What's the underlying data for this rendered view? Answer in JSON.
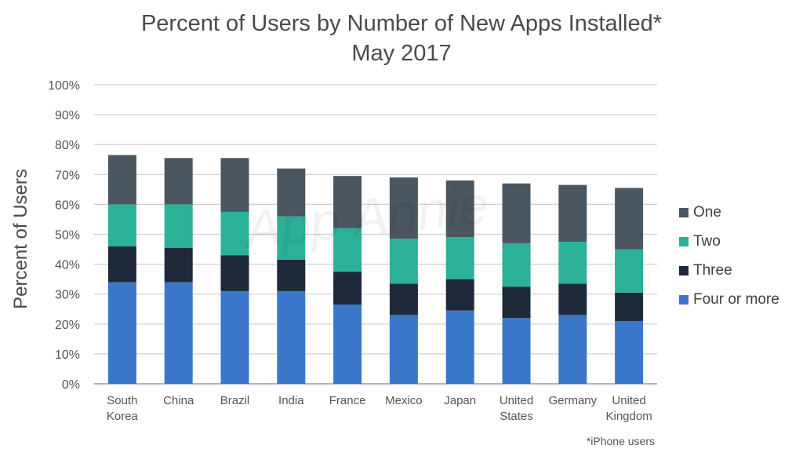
{
  "chart_data": {
    "type": "bar",
    "stacked": true,
    "title": "Percent of Users by Number of New Apps Installed*",
    "subtitle": "May 2017",
    "ylabel": "Percent of Users",
    "xlabel": "",
    "ylim": [
      0,
      100
    ],
    "yticks": [
      "0%",
      "10%",
      "20%",
      "30%",
      "40%",
      "50%",
      "60%",
      "70%",
      "80%",
      "90%",
      "100%"
    ],
    "categories": [
      "South Korea",
      "China",
      "Brazil",
      "India",
      "France",
      "Mexico",
      "Japan",
      "United States",
      "Germany",
      "United Kingdom"
    ],
    "category_lines": [
      [
        "South",
        "Korea"
      ],
      [
        "China"
      ],
      [
        "Brazil"
      ],
      [
        "India"
      ],
      [
        "France"
      ],
      [
        "Mexico"
      ],
      [
        "Japan"
      ],
      [
        "United",
        "States"
      ],
      [
        "Germany"
      ],
      [
        "United",
        "Kingdom"
      ]
    ],
    "series": [
      {
        "name": "Four or more",
        "color": "#3a77c8",
        "values": [
          34,
          34,
          31,
          31,
          26.5,
          23,
          24.5,
          22,
          23,
          21
        ]
      },
      {
        "name": "Three",
        "color": "#1e2a3a",
        "values": [
          12,
          11.5,
          12,
          10.5,
          11,
          10.5,
          10.5,
          10.5,
          10.5,
          9.5
        ]
      },
      {
        "name": "Two",
        "color": "#2bb198",
        "values": [
          14,
          14.5,
          14.5,
          14.5,
          14.5,
          15,
          14,
          14.5,
          14,
          14.5
        ]
      },
      {
        "name": "One",
        "color": "#4a5760",
        "values": [
          16.5,
          15.5,
          18,
          16,
          17.5,
          20.5,
          19,
          20,
          19,
          20.5
        ]
      }
    ],
    "legend": [
      "One",
      "Two",
      "Three",
      "Four or more"
    ],
    "legend_position": "right",
    "grid": true,
    "footnote": "*iPhone users",
    "watermark": "App Annie"
  }
}
